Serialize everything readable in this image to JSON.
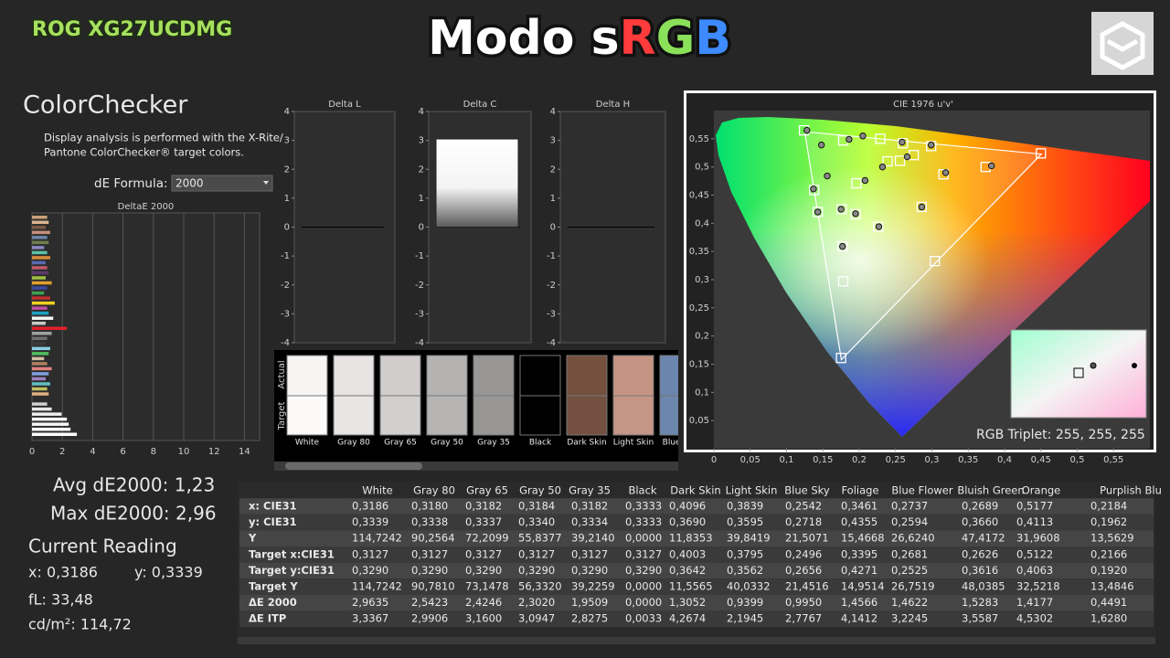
{
  "header": {
    "model": "ROG XG27UCDMG",
    "title_parts": [
      "Modo s",
      "R",
      "G",
      "B"
    ],
    "title_colors": [
      "#ffffff",
      "#ff3b3b",
      "#8be05a",
      "#3d8bff"
    ]
  },
  "colorchecker": {
    "title": "ColorChecker",
    "description": [
      "Display analysis is performed with the X-Rite/",
      "Pantone ColorChecker® target colors."
    ],
    "formula_label": "dE Formula:",
    "formula_value": "2000"
  },
  "summary": {
    "avg": "Avg dE2000: 1,23",
    "max": "Max dE2000: 2,96",
    "reading_title": "Current Reading",
    "x": "x: 0,3186",
    "y": "y: 0,3339",
    "fl": "fL: 33,48",
    "cdm2": "cd/m²: 114,72"
  },
  "chart_data": [
    {
      "type": "hbar",
      "title": "DeltaE 2000",
      "xlim": [
        0,
        15
      ],
      "xticks": [
        0,
        2,
        4,
        6,
        8,
        10,
        12,
        14
      ],
      "grid": true,
      "values": [
        1.0,
        1.1,
        0.9,
        1.2,
        1.0,
        1.1,
        0.8,
        1.0,
        1.2,
        0.9,
        1.0,
        1.1,
        0.9,
        1.3,
        1.0,
        0.8,
        1.2,
        1.5,
        1.0,
        1.1,
        1.4,
        0.9,
        2.3,
        1.3,
        1.0,
        0.9,
        1.2,
        1.1,
        0.8,
        1.0,
        1.3,
        1.1,
        0.9,
        1.2,
        1.0,
        1.1,
        0.0,
        1.0,
        1.3,
        1.95,
        2.3,
        2.42,
        2.54,
        2.96
      ],
      "colors": [
        "#c9a07a",
        "#d9b48f",
        "#7a5a44",
        "#c58f79",
        "#6f86a8",
        "#6f7d4e",
        "#8a88c2",
        "#5cc0a8",
        "#d98a3a",
        "#5a6ab0",
        "#c05a6a",
        "#5a3a6a",
        "#a0c040",
        "#e0a030",
        "#3a4aa0",
        "#40a050",
        "#c03030",
        "#f0d020",
        "#c050a0",
        "#20a0c0",
        "#f4f4f4",
        "#c8c8c8",
        "#e0202a",
        "#a0a0a0",
        "#707070",
        "#3a3a3a",
        "#8ad0e0",
        "#50c060",
        "#d0c0a0",
        "#b08060",
        "#e08080",
        "#80a0e0",
        "#a080c0",
        "#60c0c0",
        "#c0c060",
        "#e0b080",
        "#101010",
        "#d0d0d0",
        "#e8e8e8",
        "#f0f0f0",
        "#f4f4f4",
        "#f6f6f6",
        "#f8f8f8",
        "#ffffff"
      ]
    },
    {
      "type": "bar",
      "title": "Delta L",
      "values": [
        0
      ],
      "ylim": [
        -4,
        4
      ],
      "yticks": [
        4,
        3,
        2,
        1,
        0,
        -1,
        -2,
        -3,
        -4
      ],
      "color": "#ffffff"
    },
    {
      "type": "bar",
      "title": "Delta C",
      "values": [
        3.05
      ],
      "ylim": [
        -4,
        4
      ],
      "yticks": [
        4,
        3,
        2,
        1,
        0,
        -1,
        -2,
        -3,
        -4
      ],
      "color": "#ffffff"
    },
    {
      "type": "bar",
      "title": "Delta H",
      "values": [
        0
      ],
      "ylim": [
        -4,
        4
      ],
      "yticks": [
        4,
        3,
        2,
        1,
        0,
        -1,
        -2,
        -3,
        -4
      ],
      "color": "#ffffff"
    },
    {
      "type": "scatter",
      "title": "CIE 1976 u'v'",
      "xlim": [
        0,
        0.6
      ],
      "ylim": [
        0,
        0.6
      ],
      "xticks": [
        0,
        {
          "value": 0.05,
          "label": "0,05"
        },
        {
          "value": 0.1,
          "label": "0,1"
        },
        {
          "value": 0.15,
          "label": "0,15"
        },
        {
          "value": 0.2,
          "label": "0,2"
        },
        {
          "value": 0.25,
          "label": "0,25"
        },
        {
          "value": 0.3,
          "label": "0,3"
        },
        {
          "value": 0.35,
          "label": "0,35"
        },
        {
          "value": 0.4,
          "label": "0,4"
        },
        {
          "value": 0.45,
          "label": "0,45"
        },
        {
          "value": 0.5,
          "label": "0,5"
        },
        {
          "value": 0.55,
          "label": "0,55"
        }
      ],
      "yticks": [
        {
          "value": 0.05,
          "label": "0,05"
        },
        {
          "value": 0.1,
          "label": "0,1"
        },
        {
          "value": 0.15,
          "label": "0,15"
        },
        {
          "value": 0.2,
          "label": "0,2"
        },
        {
          "value": 0.25,
          "label": "0,25"
        },
        {
          "value": 0.3,
          "label": "0,3"
        },
        {
          "value": 0.35,
          "label": "0,35"
        },
        {
          "value": 0.4,
          "label": "0,4"
        },
        {
          "value": 0.45,
          "label": "0,45"
        },
        {
          "value": 0.5,
          "label": "0,5"
        },
        {
          "value": 0.55,
          "label": "0,55"
        }
      ],
      "gamut": {
        "x": [
          0.4507,
          0.125,
          0.1754
        ],
        "y": [
          0.5229,
          0.5625,
          0.1579
        ]
      },
      "targets": {
        "x": [
          0.124,
          0.178,
          0.229,
          0.26,
          0.299,
          0.239,
          0.256,
          0.275,
          0.374,
          0.45,
          0.316,
          0.196,
          0.138,
          0.143,
          0.176,
          0.195,
          0.226,
          0.286,
          0.177,
          0.178,
          0.304,
          0.175
        ],
        "y": [
          0.565,
          0.547,
          0.55,
          0.542,
          0.537,
          0.51,
          0.511,
          0.521,
          0.5,
          0.524,
          0.487,
          0.471,
          0.459,
          0.42,
          0.425,
          0.416,
          0.394,
          0.429,
          0.359,
          0.297,
          0.333,
          0.161
        ]
      },
      "actuals": {
        "x": [
          0.128,
          0.148,
          0.156,
          0.186,
          0.205,
          0.259,
          0.299,
          0.232,
          0.266,
          0.382,
          0.319,
          0.208,
          0.137,
          0.143,
          0.175,
          0.195,
          0.227,
          0.286,
          0.177
        ],
        "y": [
          0.565,
          0.539,
          0.484,
          0.549,
          0.555,
          0.544,
          0.539,
          0.5,
          0.518,
          0.502,
          0.49,
          0.476,
          0.461,
          0.42,
          0.425,
          0.417,
          0.394,
          0.429,
          0.359
        ]
      },
      "inset_label": "RGB Triplet: 255, 255, 255"
    }
  ],
  "swatches": {
    "actual_label": "Actual",
    "target_label": "Target",
    "items": [
      {
        "label": "White",
        "actual": "#f7f5f3",
        "target": "#fbfaf9"
      },
      {
        "label": "Gray 80",
        "actual": "#e6e3e2",
        "target": "#e8e6e5"
      },
      {
        "label": "Gray 65",
        "actual": "#d0cdcc",
        "target": "#d2d0cf"
      },
      {
        "label": "Gray 50",
        "actual": "#b5b3b2",
        "target": "#b7b5b4"
      },
      {
        "label": "Gray 35",
        "actual": "#979695",
        "target": "#989796"
      },
      {
        "label": "Black",
        "actual": "#000000",
        "target": "#000000"
      },
      {
        "label": "Dark Skin",
        "actual": "#74503f",
        "target": "#735041"
      },
      {
        "label": "Light Skin",
        "actual": "#c69483",
        "target": "#c59585"
      },
      {
        "label": "Blue Sky",
        "actual": "#6a86ae",
        "target": "#6b87ad"
      }
    ]
  },
  "table": {
    "headers": [
      "White",
      "Gray 80",
      "Gray 65",
      "Gray 50",
      "Gray 35",
      "Black",
      "Dark Skin",
      "Light Skin",
      "Blue Sky",
      "Foliage",
      "Blue Flower",
      "Bluish Green",
      "Orange",
      "Purplish Blu"
    ],
    "rows": [
      {
        "label": "x: CIE31",
        "cells": [
          "0,3186",
          "0,3180",
          "0,3182",
          "0,3184",
          "0,3182",
          "0,3333",
          "0,4096",
          "0,3839",
          "0,2542",
          "0,3461",
          "0,2737",
          "0,2689",
          "0,5177",
          "0,2184"
        ]
      },
      {
        "label": "y: CIE31",
        "cells": [
          "0,3339",
          "0,3338",
          "0,3337",
          "0,3340",
          "0,3334",
          "0,3333",
          "0,3690",
          "0,3595",
          "0,2718",
          "0,4355",
          "0,2594",
          "0,3660",
          "0,4113",
          "0,1962"
        ]
      },
      {
        "label": "Y",
        "cells": [
          "114,7242",
          "90,2564",
          "72,2099",
          "55,8377",
          "39,2140",
          "0,0000",
          "11,8353",
          "39,8419",
          "21,5071",
          "15,4668",
          "26,6240",
          "47,4172",
          "31,9608",
          "13,5629"
        ]
      },
      {
        "label": "Target x:CIE31",
        "cells": [
          "0,3127",
          "0,3127",
          "0,3127",
          "0,3127",
          "0,3127",
          "0,3127",
          "0,4003",
          "0,3795",
          "0,2496",
          "0,3395",
          "0,2681",
          "0,2626",
          "0,5122",
          "0,2166"
        ]
      },
      {
        "label": "Target y:CIE31",
        "cells": [
          "0,3290",
          "0,3290",
          "0,3290",
          "0,3290",
          "0,3290",
          "0,3290",
          "0,3642",
          "0,3562",
          "0,2656",
          "0,4271",
          "0,2525",
          "0,3616",
          "0,4063",
          "0,1920"
        ]
      },
      {
        "label": "Target Y",
        "cells": [
          "114,7242",
          "90,7810",
          "73,1478",
          "56,3320",
          "39,2259",
          "0,0000",
          "11,5565",
          "40,0332",
          "21,4516",
          "14,9514",
          "26,7519",
          "48,0385",
          "32,5218",
          "13,4846"
        ]
      },
      {
        "label": "ΔE 2000",
        "cells": [
          "2,9635",
          "2,5423",
          "2,4246",
          "2,3020",
          "1,9509",
          "0,0000",
          "1,3052",
          "0,9399",
          "0,9950",
          "1,4566",
          "1,4622",
          "1,5283",
          "1,4177",
          "0,4491"
        ]
      },
      {
        "label": "ΔE ITP",
        "cells": [
          "3,3367",
          "2,9906",
          "3,1600",
          "3,0947",
          "2,8275",
          "0,0033",
          "4,2674",
          "2,1945",
          "2,7767",
          "4,1412",
          "3,2245",
          "3,5587",
          "4,5302",
          "1,6280"
        ]
      }
    ]
  }
}
